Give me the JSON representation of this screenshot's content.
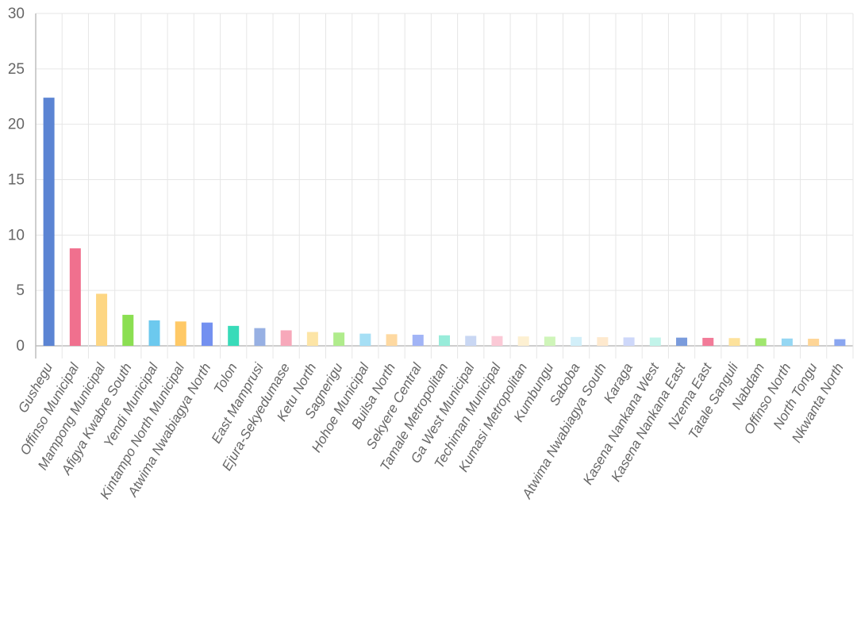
{
  "chart_data": {
    "type": "bar",
    "title": "",
    "xlabel": "",
    "ylabel": "",
    "ylim": [
      0,
      30
    ],
    "yticks": [
      0,
      5,
      10,
      15,
      20,
      25,
      30
    ],
    "grid": true,
    "legend": "none",
    "categories": [
      "Gushegu",
      "Offinso Municipal",
      "Mampong Municipal",
      "Afigya Kwabre South",
      "Yendi Municipal",
      "Kintampo North Municipal",
      "Atwima Nwabiagya North",
      "Tolon",
      "East Mamprusi",
      "Ejura-Sekyedumase",
      "Ketu North",
      "Sagnerigu",
      "Hohoe Municipal",
      "Builsa North",
      "Sekyere Central",
      "Tamale Metropolitan",
      "Ga West Municipal",
      "Techiman Municipal",
      "Kumasi Metropolitan",
      "Kumbungu",
      "Saboba",
      "Atwima Nwabiagya South",
      "Karaga",
      "Kasena Nankana West",
      "Kasena Nankana East",
      "Nzema East",
      "Tatale Sanguli",
      "Nabdam",
      "Offinso North",
      "North Tongu",
      "Nkwanta North"
    ],
    "values": [
      22.4,
      8.8,
      4.7,
      2.8,
      2.3,
      2.2,
      2.1,
      1.8,
      1.6,
      1.4,
      1.25,
      1.2,
      1.1,
      1.05,
      1.0,
      0.95,
      0.9,
      0.88,
      0.85,
      0.83,
      0.8,
      0.78,
      0.76,
      0.75,
      0.74,
      0.72,
      0.7,
      0.68,
      0.66,
      0.64,
      0.6
    ],
    "colors": [
      "#5b84d3",
      "#f0708e",
      "#fdd683",
      "#8bdf52",
      "#6cc9ee",
      "#ffc966",
      "#7390f0",
      "#38dbb9",
      "#97b0e3",
      "#f7a8ba",
      "#fde5a6",
      "#b0ec8c",
      "#a6dff5",
      "#fed9a1",
      "#a1b4f6",
      "#98ecda",
      "#c9d7f3",
      "#fbc9d6",
      "#fdf0d2",
      "#cff5b9",
      "#d2eff9",
      "#fee9ce",
      "#ced8fa",
      "#c2f4ea",
      "#7a9bdc",
      "#f27b98",
      "#fde29c",
      "#a0e66e",
      "#95d7f3",
      "#fed596",
      "#8aa6f0"
    ]
  }
}
